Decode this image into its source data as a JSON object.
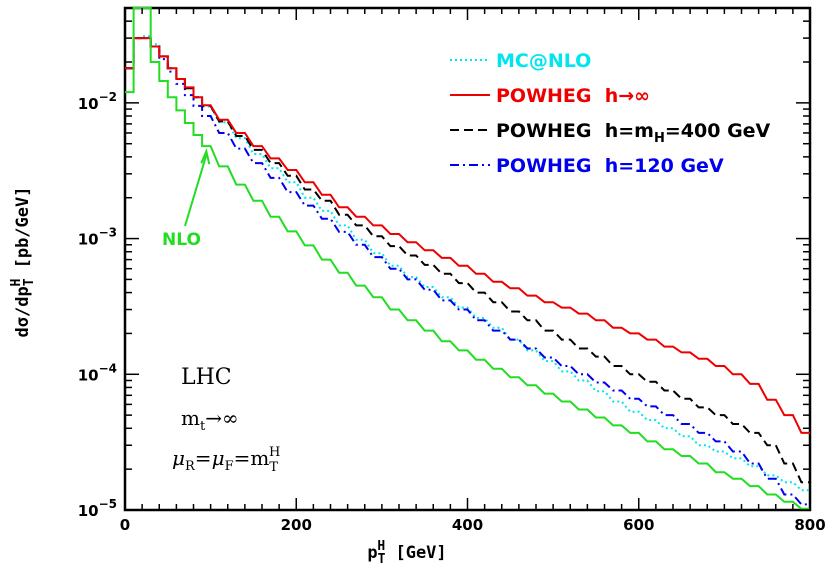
{
  "chart_data": {
    "type": "line",
    "xlabel": "p_T^H [GeV]",
    "xlabel_main": "p",
    "xlabel_sub": "T",
    "xlabel_sup": "H",
    "xlabel_unit": " [GeV]",
    "ylabel": "dσ/dp_T^H [pb/GeV]",
    "ylabel_main": "dσ/dp",
    "ylabel_sub": "T",
    "ylabel_sup": "H",
    "ylabel_unit": " [pb/GeV]",
    "xlim": [
      0,
      800
    ],
    "ylim": [
      1e-05,
      0.05
    ],
    "yscale": "log",
    "x_ticks": [
      "0",
      "200",
      "400",
      "600",
      "800"
    ],
    "y_ticks": [
      {
        "base": "10",
        "exp": "−2",
        "value": 0.01
      },
      {
        "base": "10",
        "exp": "−3",
        "value": 0.001
      },
      {
        "base": "10",
        "exp": "−4",
        "value": 0.0001
      },
      {
        "base": "10",
        "exp": "−5",
        "value": 1e-05
      }
    ],
    "legend_position": "top-right",
    "series": [
      {
        "name": "MC@NLO",
        "color": "#00e5ee",
        "dash": "dotted",
        "x": [
          10,
          20,
          30,
          40,
          50,
          60,
          70,
          80,
          90,
          100,
          120,
          140,
          160,
          180,
          200,
          220,
          240,
          260,
          280,
          300,
          320,
          340,
          360,
          380,
          400,
          420,
          440,
          460,
          480,
          500,
          520,
          540,
          560,
          580,
          600,
          620,
          640,
          660,
          680,
          700,
          720,
          740,
          760,
          780,
          800
        ],
        "y": [
          0.018,
          0.03,
          0.031,
          0.027,
          0.022,
          0.018,
          0.015,
          0.0128,
          0.011,
          0.0094,
          0.0072,
          0.0055,
          0.0042,
          0.0033,
          0.0026,
          0.002,
          0.0016,
          0.00125,
          0.00098,
          0.00078,
          0.00063,
          0.00052,
          0.00044,
          0.00037,
          0.00031,
          0.00026,
          0.00022,
          0.00018,
          0.00015,
          0.000125,
          0.000105,
          9e-05,
          7.5e-05,
          6.3e-05,
          5.3e-05,
          4.6e-05,
          4e-05,
          3.5e-05,
          3e-05,
          2.7e-05,
          2.4e-05,
          2.1e-05,
          1.8e-05,
          1.6e-05,
          1.4e-05
        ]
      },
      {
        "name": "POWHEG h→∞",
        "color": "#ee0000",
        "dash": "solid",
        "x": [
          10,
          20,
          30,
          40,
          50,
          60,
          70,
          80,
          90,
          100,
          120,
          140,
          160,
          180,
          200,
          220,
          240,
          260,
          280,
          300,
          320,
          340,
          360,
          380,
          400,
          420,
          440,
          460,
          480,
          500,
          520,
          540,
          560,
          580,
          600,
          620,
          640,
          660,
          680,
          700,
          720,
          740,
          760,
          780,
          800
        ],
        "y": [
          0.018,
          0.03,
          0.03,
          0.026,
          0.022,
          0.018,
          0.015,
          0.013,
          0.011,
          0.0096,
          0.0075,
          0.006,
          0.0048,
          0.0039,
          0.0032,
          0.0026,
          0.0021,
          0.0017,
          0.00145,
          0.00125,
          0.00108,
          0.00094,
          0.00082,
          0.00072,
          0.00063,
          0.00055,
          0.00048,
          0.00043,
          0.00038,
          0.00034,
          0.00031,
          0.00028,
          0.00025,
          0.00022,
          0.0002,
          0.00018,
          0.00016,
          0.000145,
          0.00013,
          0.000115,
          0.0001,
          8.5e-05,
          6.5e-05,
          5e-05,
          3.7e-05
        ]
      },
      {
        "name": "POWHEG h=m_H=400 GeV",
        "color": "#000000",
        "dash": "dashed",
        "x": [
          10,
          20,
          30,
          40,
          50,
          60,
          70,
          80,
          90,
          100,
          120,
          140,
          160,
          180,
          200,
          220,
          240,
          260,
          280,
          300,
          320,
          340,
          360,
          380,
          400,
          420,
          440,
          460,
          480,
          500,
          520,
          540,
          560,
          580,
          600,
          620,
          640,
          660,
          680,
          700,
          720,
          740,
          760,
          780,
          800
        ],
        "y": [
          0.018,
          0.03,
          0.03,
          0.026,
          0.022,
          0.018,
          0.015,
          0.0128,
          0.011,
          0.0095,
          0.0073,
          0.0057,
          0.0045,
          0.0036,
          0.0029,
          0.0023,
          0.0019,
          0.0015,
          0.00125,
          0.00104,
          0.00088,
          0.00075,
          0.00064,
          0.00055,
          0.00047,
          0.0004,
          0.00034,
          0.00029,
          0.00025,
          0.00021,
          0.00018,
          0.000155,
          0.000135,
          0.000115,
          0.0001,
          8.8e-05,
          7.6e-05,
          6.6e-05,
          5.7e-05,
          5e-05,
          4.3e-05,
          3.7e-05,
          3e-05,
          2.2e-05,
          1.6e-05
        ]
      },
      {
        "name": "POWHEG h=120 GeV",
        "color": "#0000ee",
        "dash": "dashdot",
        "x": [
          10,
          20,
          30,
          40,
          50,
          60,
          70,
          80,
          90,
          100,
          120,
          140,
          160,
          180,
          200,
          220,
          240,
          260,
          280,
          300,
          320,
          340,
          360,
          380,
          400,
          420,
          440,
          460,
          480,
          500,
          520,
          540,
          560,
          580,
          600,
          620,
          640,
          660,
          680,
          700,
          720,
          740,
          760,
          780,
          800
        ],
        "y": [
          0.018,
          0.03,
          0.03,
          0.026,
          0.021,
          0.017,
          0.0138,
          0.0114,
          0.0095,
          0.008,
          0.006,
          0.0046,
          0.0036,
          0.0028,
          0.0022,
          0.00175,
          0.0014,
          0.00112,
          0.0009,
          0.00073,
          0.0006,
          0.0005,
          0.00042,
          0.00035,
          0.0003,
          0.00025,
          0.00021,
          0.00018,
          0.000155,
          0.000133,
          0.000115,
          0.0001,
          8.7e-05,
          7.6e-05,
          6.6e-05,
          5.8e-05,
          5e-05,
          4.3e-05,
          3.7e-05,
          3.2e-05,
          2.7e-05,
          2.2e-05,
          1.7e-05,
          1.3e-05,
          1.1e-05
        ]
      },
      {
        "name": "NLO",
        "color": "#22dd22",
        "dash": "solid",
        "x": [
          10,
          20,
          30,
          40,
          50,
          60,
          70,
          80,
          90,
          100,
          120,
          140,
          160,
          180,
          200,
          220,
          240,
          260,
          280,
          300,
          320,
          340,
          360,
          380,
          400,
          420,
          440,
          460,
          480,
          500,
          520,
          540,
          560,
          580,
          600,
          620,
          640,
          660,
          680,
          700,
          720,
          740,
          760,
          780,
          800
        ],
        "y": [
          0.012,
          0.05,
          0.05,
          0.02,
          0.0145,
          0.011,
          0.0088,
          0.0071,
          0.0058,
          0.0048,
          0.0034,
          0.0025,
          0.0019,
          0.00145,
          0.00113,
          0.00089,
          0.0007,
          0.00056,
          0.00045,
          0.00037,
          0.0003,
          0.00025,
          0.00021,
          0.000175,
          0.00015,
          0.000128,
          0.00011,
          9.5e-05,
          8.3e-05,
          7.2e-05,
          6.3e-05,
          5.5e-05,
          4.8e-05,
          4.2e-05,
          3.7e-05,
          3.2e-05,
          2.8e-05,
          2.5e-05,
          2.2e-05,
          1.9e-05,
          1.7e-05,
          1.5e-05,
          1.3e-05,
          1.15e-05,
          1.02e-05
        ]
      }
    ],
    "annotations": {
      "nlo_label": "NLO",
      "nlo_arrow_at": {
        "x": 95,
        "y": 0.0044
      },
      "lhc": "LHC",
      "mt_main": "m",
      "mt_sub": "t",
      "mt_rest": "→∞",
      "mu_r": "μ",
      "mu_r_sub": "R",
      "mu_eq1": "=",
      "mu_f": "μ",
      "mu_f_sub": "F",
      "mu_eq2": "=m",
      "mu_mt_sub": "T",
      "mu_mt_sup": "H"
    },
    "legend": [
      {
        "series": 0,
        "text": "MC@NLO"
      },
      {
        "series": 1,
        "text_parts": [
          "POWHEG  h→∞"
        ]
      },
      {
        "series": 2,
        "text_parts": [
          "POWHEG  h=m",
          "H",
          "=400 GeV"
        ]
      },
      {
        "series": 3,
        "text_parts": [
          "POWHEG  h=120 GeV"
        ]
      }
    ]
  }
}
